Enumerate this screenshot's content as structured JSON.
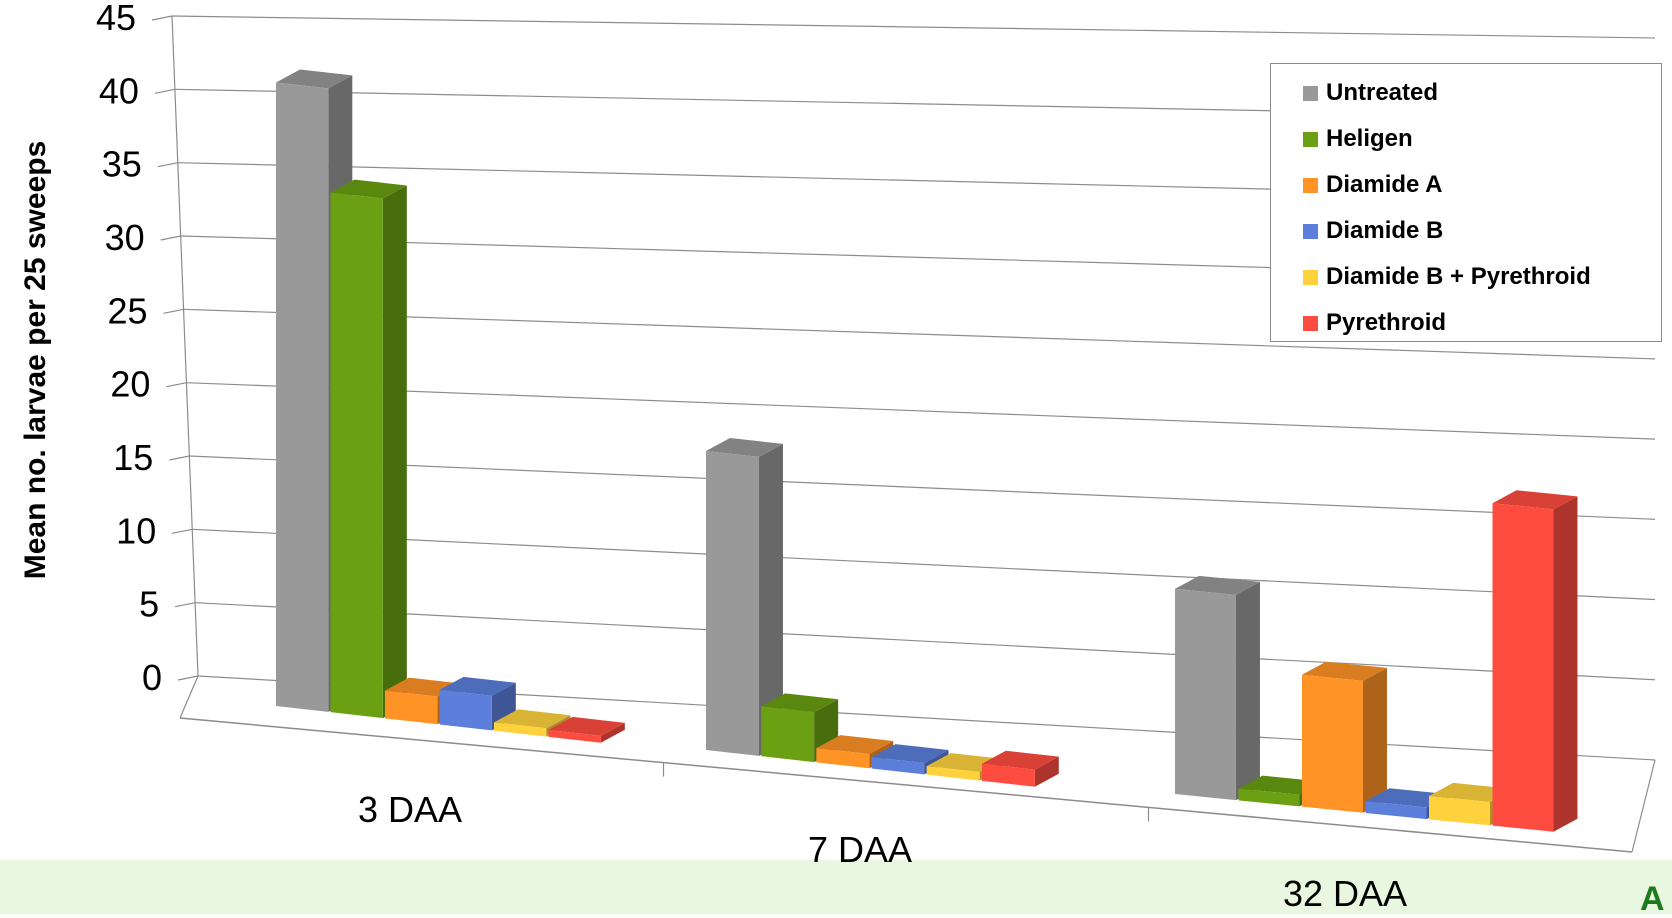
{
  "chart_data": {
    "type": "bar",
    "title": "",
    "xlabel": "",
    "ylabel": "Mean no. larvae per 25 sweeps",
    "ylim": [
      0,
      45
    ],
    "yticks": [
      0,
      5,
      10,
      15,
      20,
      25,
      30,
      35,
      40,
      45
    ],
    "categories": [
      "3 DAA",
      "7 DAA",
      "32 DAA"
    ],
    "series": [
      {
        "name": "Untreated",
        "color": "#999999",
        "values": [
          45,
          21,
          14
        ]
      },
      {
        "name": "Heligen",
        "color": "#6aa012",
        "values": [
          37.5,
          3.5,
          0.8
        ]
      },
      {
        "name": "Diamide A",
        "color": "#ff9326",
        "values": [
          2,
          1,
          9
        ]
      },
      {
        "name": "Diamide B",
        "color": "#5b7fdb",
        "values": [
          2.5,
          0.8,
          0.8
        ]
      },
      {
        "name": "Diamide B + Pyrethroid",
        "color": "#ffd23d",
        "values": [
          0.6,
          0.6,
          1.6
        ]
      },
      {
        "name": "Pyrethroid",
        "color": "#ff4c40",
        "values": [
          0.5,
          1.2,
          22
        ]
      }
    ],
    "grid": true,
    "legend_position": "top-right",
    "view": "3d"
  }
}
